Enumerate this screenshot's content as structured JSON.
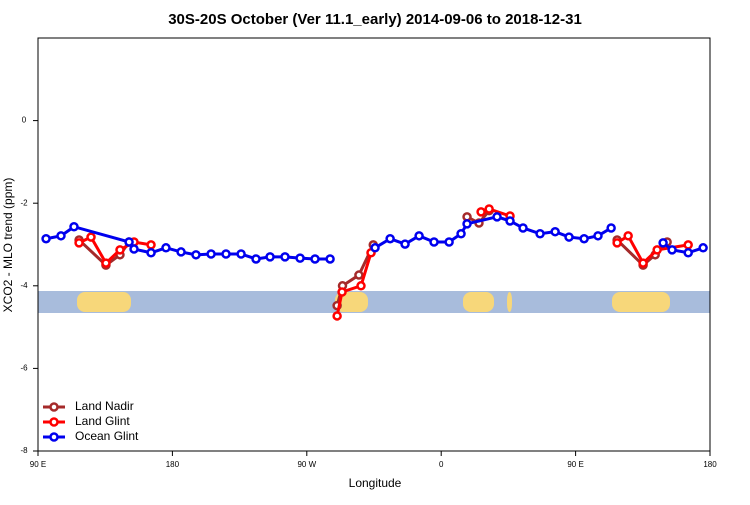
{
  "chart_data": {
    "type": "line",
    "title": "30S-20S October (Ver 11.1_early)   2014-09-06 to 2018-12-31",
    "x_label": "Longitude",
    "y_label": "XCO2 - MLO trend (ppm)",
    "xlim": [
      90,
      540
    ],
    "ylim": [
      -8,
      2
    ],
    "xticks": [
      {
        "value": 90,
        "label": "90 E"
      },
      180,
      {
        "value": 270,
        "label": "90 W"
      },
      {
        "value": 360,
        "label": "0"
      },
      {
        "value": 450,
        "label": "90 E"
      },
      {
        "value": 540,
        "label": "180"
      }
    ],
    "yticks": [
      0,
      -2,
      -4,
      -6,
      -8
    ],
    "legend": "bottom-left",
    "series": [
      {
        "name": "Land Nadir",
        "color": "#a52a2a",
        "x": [
          117.5,
          135.5,
          144.9,
          151,
          null,
          290.3,
          293.9,
          304.9,
          314.5,
          null,
          377.3,
          385.3,
          392.1,
          null,
          477.8,
          495.2,
          503.3,
          511.3
        ],
        "values": [
          -2.89,
          -3.5,
          -3.25,
          -2.94,
          null,
          -4.48,
          -4.0,
          -3.74,
          -3.01,
          null,
          -2.33,
          -2.48,
          -2.18,
          null,
          -2.89,
          -3.5,
          -3.25,
          -2.94
        ]
      },
      {
        "name": "Land Glint",
        "color": "#ff0000",
        "x": [
          117.5,
          125.5,
          135.5,
          144.9,
          154.3,
          165.7,
          null,
          290.3,
          293.6,
          306.3,
          313,
          null,
          386.7,
          392.1,
          406.1,
          null,
          477.8,
          485.2,
          495.2,
          504.6,
          525.4
        ],
        "values": [
          -2.96,
          -2.82,
          -3.45,
          -3.13,
          -2.94,
          -3.01,
          null,
          -4.73,
          -4.15,
          -4.0,
          -3.2,
          null,
          -2.21,
          -2.14,
          -2.31,
          null,
          -2.96,
          -2.79,
          -3.45,
          -3.13,
          -3.01
        ]
      },
      {
        "name": "Ocean Glint",
        "color": "#0000ee",
        "x": [
          95.4,
          105.4,
          114.1,
          151,
          154.3,
          165.7,
          175.7,
          185.8,
          195.8,
          205.9,
          215.9,
          226,
          236,
          245.4,
          255.4,
          265.5,
          275.5,
          285.6,
          null,
          315.7,
          325.8,
          335.8,
          345.2,
          355.2,
          365.3,
          373.3,
          377.3,
          397.4,
          406.1,
          414.8,
          426.2,
          436.3,
          445.6,
          455.7,
          465,
          473.8,
          null,
          508.6,
          514.6,
          525.4,
          535.4
        ],
        "values": [
          -2.86,
          -2.79,
          -2.57,
          -2.94,
          -3.11,
          -3.2,
          -3.08,
          -3.18,
          -3.25,
          -3.23,
          -3.23,
          -3.23,
          -3.35,
          -3.3,
          -3.3,
          -3.33,
          -3.35,
          -3.35,
          null,
          -3.08,
          -2.86,
          -2.99,
          -2.79,
          -2.94,
          -2.94,
          -2.74,
          -2.5,
          -2.33,
          -2.43,
          -2.6,
          -2.74,
          -2.69,
          -2.82,
          -2.86,
          -2.79,
          -2.6,
          null,
          -2.96,
          -3.13,
          -3.2,
          -3.08
        ]
      }
    ]
  }
}
